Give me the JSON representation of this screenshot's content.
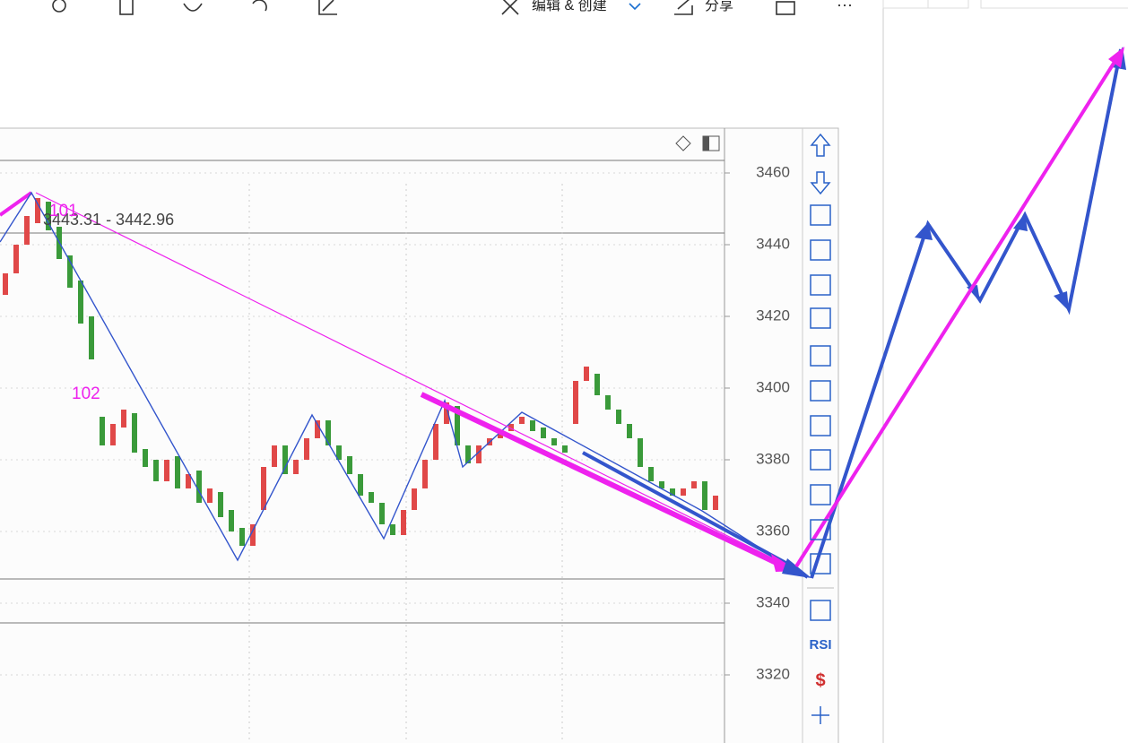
{
  "toolbar": {
    "edit": "编辑 & 创建",
    "share": "分享",
    "more": "···"
  },
  "chart_data": {
    "type": "candlestick",
    "ylim": [
      3301,
      3472.5
    ],
    "yticks": [
      3460,
      3440,
      3420,
      3400,
      3380,
      3360,
      3340,
      3320
    ],
    "grid": true,
    "up_color": "#e04848",
    "down_color": "#3a9a3a",
    "range_label": "3443.31 - 3442.96",
    "wave_labels": [
      "101",
      "102"
    ],
    "candles": [
      [
        3426,
        3432
      ],
      [
        3432,
        3440
      ],
      [
        3440,
        3448
      ],
      [
        3446,
        3453
      ],
      [
        3452,
        3444
      ],
      [
        3445,
        3436
      ],
      [
        3437,
        3428
      ],
      [
        3430,
        3418
      ],
      [
        3420,
        3408
      ],
      [
        3392,
        3384
      ],
      [
        3384,
        3390
      ],
      [
        3389,
        3394
      ],
      [
        3393,
        3382
      ],
      [
        3383,
        3378
      ],
      [
        3380,
        3374
      ],
      [
        3374,
        3380
      ],
      [
        3381,
        3372
      ],
      [
        3372,
        3376
      ],
      [
        3377,
        3368
      ],
      [
        3368,
        3372
      ],
      [
        3371,
        3364
      ],
      [
        3366,
        3360
      ],
      [
        3361,
        3356
      ],
      [
        3356,
        3362
      ],
      [
        3366,
        3378
      ],
      [
        3378,
        3384
      ],
      [
        3384,
        3376
      ],
      [
        3376,
        3380
      ],
      [
        3380,
        3386
      ],
      [
        3386,
        3391
      ],
      [
        3391,
        3384
      ],
      [
        3384,
        3380
      ],
      [
        3381,
        3376
      ],
      [
        3376,
        3370
      ],
      [
        3371,
        3368
      ],
      [
        3368,
        3362
      ],
      [
        3362,
        3359
      ],
      [
        3359,
        3366
      ],
      [
        3366,
        3372
      ],
      [
        3372,
        3380
      ],
      [
        3380,
        3390
      ],
      [
        3390,
        3396
      ],
      [
        3395,
        3384
      ],
      [
        3384,
        3379
      ],
      [
        3379,
        3384
      ],
      [
        3384,
        3386
      ],
      [
        3386,
        3388
      ],
      [
        3388,
        3390
      ],
      [
        3390,
        3392
      ],
      [
        3391,
        3388
      ],
      [
        3389,
        3386
      ],
      [
        3386,
        3384
      ],
      [
        3384,
        3382
      ],
      [
        3390,
        3402
      ],
      [
        3402,
        3406
      ],
      [
        3404,
        3398
      ],
      [
        3398,
        3394
      ],
      [
        3394,
        3390
      ],
      [
        3390,
        3386
      ],
      [
        3386,
        3378
      ],
      [
        3378,
        3374
      ],
      [
        3374,
        3372
      ],
      [
        3372,
        3370
      ],
      [
        3370,
        3372
      ],
      [
        3372,
        3374
      ],
      [
        3374,
        3366
      ],
      [
        3366,
        3370
      ]
    ]
  },
  "side_toolbar": {
    "rsi": "RSI"
  }
}
